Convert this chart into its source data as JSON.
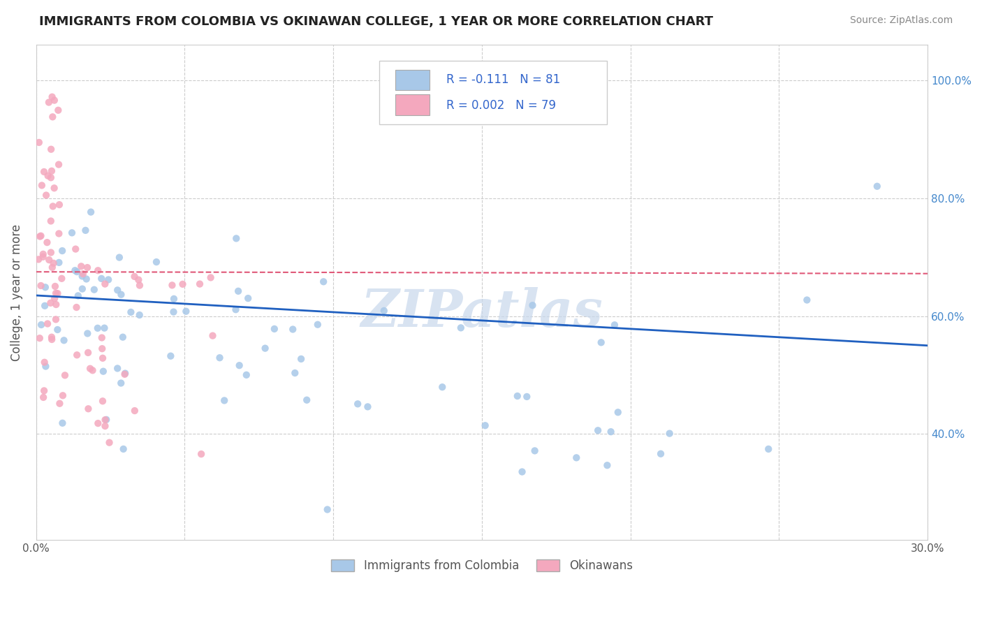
{
  "title": "IMMIGRANTS FROM COLOMBIA VS OKINAWAN COLLEGE, 1 YEAR OR MORE CORRELATION CHART",
  "source": "Source: ZipAtlas.com",
  "ylabel": "College, 1 year or more",
  "xlim": [
    0.0,
    0.3
  ],
  "ylim": [
    0.22,
    1.06
  ],
  "xtick_vals": [
    0.0,
    0.05,
    0.1,
    0.15,
    0.2,
    0.25,
    0.3
  ],
  "xtick_labels": [
    "0.0%",
    "",
    "",
    "",
    "",
    "",
    "30.0%"
  ],
  "ytick_vals": [
    0.4,
    0.6,
    0.8,
    1.0
  ],
  "ytick_labels": [
    "40.0%",
    "60.0%",
    "80.0%",
    "100.0%"
  ],
  "blue_R": -0.111,
  "blue_N": 81,
  "pink_R": 0.002,
  "pink_N": 79,
  "blue_color": "#a8c8e8",
  "pink_color": "#f4a8be",
  "blue_line_color": "#2060c0",
  "pink_line_color": "#e05878",
  "watermark": "ZIPatlas",
  "legend_R_blue": "R = -0.111",
  "legend_N_blue": "N = 81",
  "legend_R_pink": "R = 0.002",
  "legend_N_pink": "N = 79",
  "legend_label_blue": "Immigrants from Colombia",
  "legend_label_pink": "Okinawans"
}
